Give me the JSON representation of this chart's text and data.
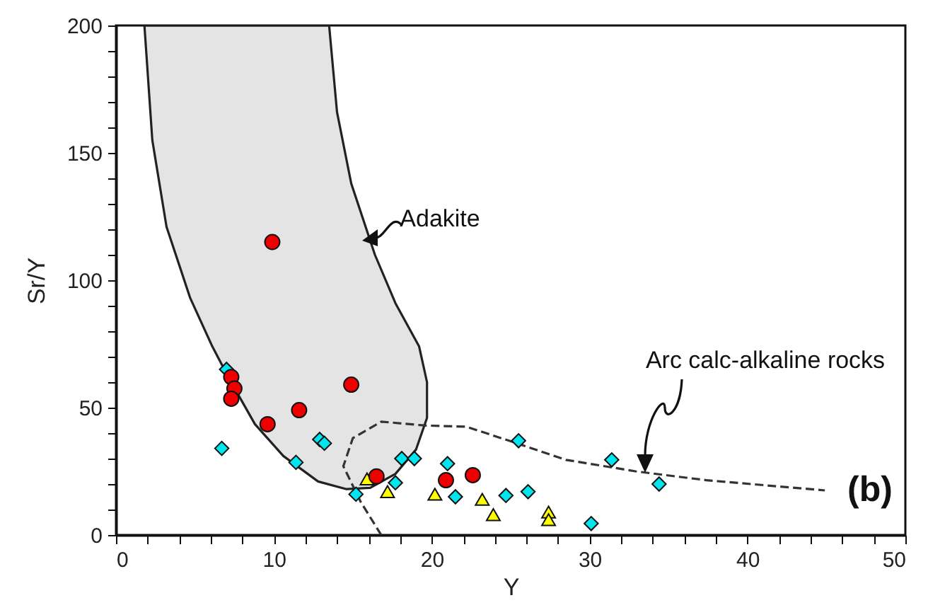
{
  "chart_data": {
    "type": "scatter",
    "xlabel": "Y",
    "ylabel": "Sr/Y",
    "xlim": [
      0,
      50
    ],
    "ylim": [
      0,
      200
    ],
    "xticks": [
      0,
      {
        "value": 2,
        "label": null
      },
      {
        "value": 4,
        "label": null
      },
      {
        "value": 6,
        "label": null
      },
      {
        "value": 8,
        "label": null
      },
      10,
      {
        "value": 12,
        "label": null
      },
      {
        "value": 14,
        "label": null
      },
      {
        "value": 16,
        "label": null
      },
      {
        "value": 18,
        "label": null
      },
      20,
      {
        "value": 22,
        "label": null
      },
      {
        "value": 24,
        "label": null
      },
      {
        "value": 26,
        "label": null
      },
      {
        "value": 28,
        "label": null
      },
      30,
      {
        "value": 32,
        "label": null
      },
      {
        "value": 34,
        "label": null
      },
      {
        "value": 36,
        "label": null
      },
      {
        "value": 38,
        "label": null
      },
      40,
      {
        "value": 42,
        "label": null
      },
      {
        "value": 44,
        "label": null
      },
      {
        "value": 46,
        "label": null
      },
      {
        "value": 48,
        "label": null
      },
      50
    ],
    "yticks": [
      0,
      {
        "value": 10,
        "label": null
      },
      {
        "value": 20,
        "label": null
      },
      {
        "value": 30,
        "label": null
      },
      {
        "value": 40,
        "label": null
      },
      50,
      {
        "value": 60,
        "label": null
      },
      {
        "value": 70,
        "label": null
      },
      {
        "value": 80,
        "label": null
      },
      {
        "value": 90,
        "label": null
      },
      100,
      {
        "value": 110,
        "label": null
      },
      {
        "value": 120,
        "label": null
      },
      {
        "value": 130,
        "label": null
      },
      {
        "value": 140,
        "label": null
      },
      150,
      {
        "value": 160,
        "label": null
      },
      {
        "value": 170,
        "label": null
      },
      {
        "value": 180,
        "label": null
      },
      {
        "value": 190,
        "label": null
      },
      200
    ],
    "grid": false,
    "annotations": [
      "(b)"
    ],
    "series": [
      {
        "name": "Adakite",
        "type": "area",
        "color": "#222222",
        "line_style": "solid",
        "marker": "none",
        "x": [
          1.8,
          2.3,
          3.2,
          4.7,
          6.1,
          7.2,
          8.8,
          10.6,
          12.8,
          14.6,
          16.1,
          17.7,
          19.0,
          19.7,
          19.7,
          19.2,
          17.7,
          16.4,
          14.9,
          14.0,
          13.5,
          1.8
        ],
        "values": [
          200,
          155,
          121,
          93,
          74,
          61,
          43.5,
          31,
          21,
          18,
          18.5,
          24,
          33.5,
          46,
          60,
          74,
          91,
          110,
          138,
          166,
          200,
          200
        ]
      },
      {
        "name": "Arc calc-alkaline rocks",
        "type": "line",
        "color": "#333333",
        "line_style": "dashed",
        "marker": "none",
        "x": [
          16.8,
          15.5,
          14.4,
          15.0,
          16.8,
          19.5,
          22.2,
          24.9,
          28.5,
          32.9,
          37.4,
          44.9
        ],
        "values": [
          0,
          13,
          27,
          38,
          44.5,
          43,
          42.5,
          37,
          29.5,
          25,
          21.5,
          17.5
        ]
      },
      {
        "color": "#00e5ee",
        "marker": "diamond",
        "x": [
          7.0,
          6.7,
          11.4,
          12.9,
          13.2,
          15.2,
          18.1,
          18.9,
          17.7,
          21.0,
          21.5,
          24.7,
          26.1,
          25.5,
          30.1,
          31.4,
          34.4
        ],
        "values": [
          65,
          34,
          28.5,
          37.5,
          36,
          16,
          30,
          30,
          20.5,
          28,
          15,
          15.5,
          17,
          37,
          4.5,
          29.5,
          20
        ]
      },
      {
        "color": "#ffff00",
        "marker": "triangle",
        "x": [
          15.9,
          17.2,
          20.2,
          23.2,
          23.9,
          27.4,
          27.4
        ],
        "values": [
          22,
          17,
          16,
          14,
          8,
          9,
          6
        ]
      },
      {
        "color": "#ee0000",
        "marker": "circle",
        "x": [
          9.9,
          7.3,
          7.5,
          7.3,
          9.6,
          11.6,
          14.9,
          16.5,
          20.9,
          22.6
        ],
        "values": [
          115,
          62,
          57.5,
          53.5,
          43.5,
          49,
          59,
          23,
          21.5,
          23.5
        ]
      }
    ]
  }
}
